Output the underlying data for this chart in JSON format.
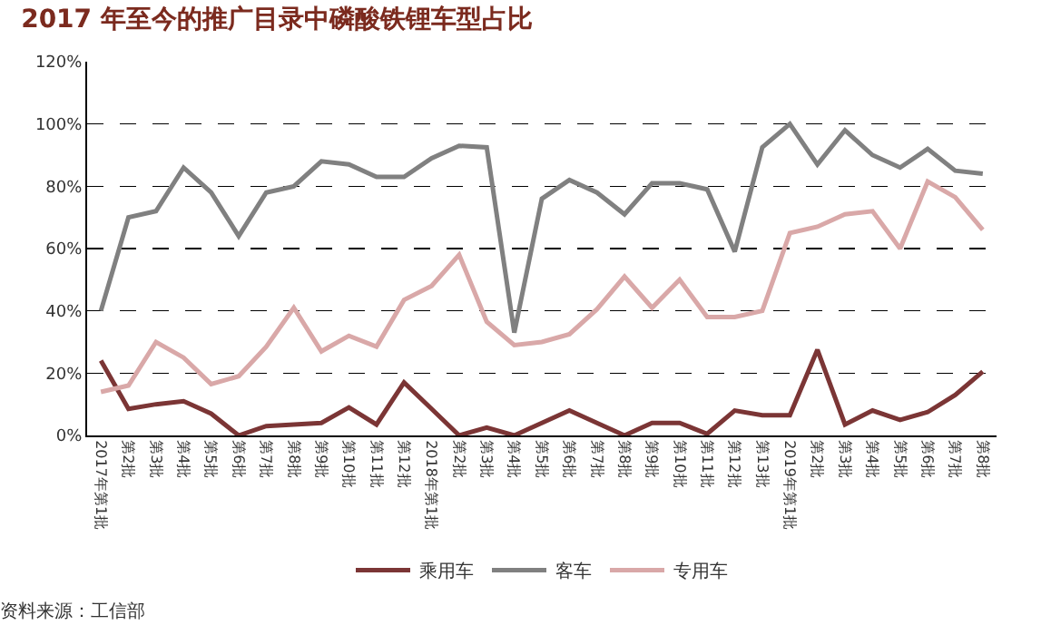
{
  "chart_data": {
    "type": "line",
    "title": "2017 年至今的推广目录中磷酸铁锂车型占比",
    "categories": [
      "2017年第1批",
      "第2批",
      "第3批",
      "第4批",
      "第5批",
      "第6批",
      "第7批",
      "第8批",
      "第9批",
      "第10批",
      "第11批",
      "第12批",
      "2018年第1批",
      "第2批",
      "第3批",
      "第4批",
      "第5批",
      "第6批",
      "第7批",
      "第8批",
      "第9批",
      "第10批",
      "第11批",
      "第12批",
      "第13批",
      "2019年第1批",
      "第2批",
      "第3批",
      "第4批",
      "第5批",
      "第6批",
      "第7批",
      "第8批"
    ],
    "series": [
      {
        "name": "乘用车",
        "color": "#7b3535",
        "values": [
          24,
          8.5,
          10,
          11,
          7,
          0,
          3,
          3.5,
          4,
          9,
          3.5,
          17,
          8.5,
          0,
          2.5,
          0,
          4,
          8,
          4,
          0,
          4,
          4,
          0.5,
          8,
          6.5,
          6.5,
          27.5,
          3.5,
          8,
          5,
          7.5,
          13,
          20.5
        ]
      },
      {
        "name": "客车",
        "color": "#808080",
        "values": [
          40,
          70,
          72,
          86,
          78,
          64,
          78,
          80,
          88,
          87,
          83,
          83,
          89,
          93,
          92.5,
          33,
          76,
          82,
          78,
          71,
          81,
          81,
          79,
          59,
          92.5,
          100,
          87,
          98,
          90,
          86,
          92,
          85,
          84
        ]
      },
      {
        "name": "专用车",
        "color": "#d9a8a8",
        "values": [
          14,
          16,
          30,
          25,
          16.5,
          19,
          28.5,
          41,
          27,
          32,
          28.5,
          43.5,
          48,
          58,
          36.5,
          29,
          30,
          32.5,
          40.5,
          51,
          41,
          50,
          38,
          38,
          40,
          65,
          67,
          71,
          72,
          60,
          81.5,
          76.5,
          66
        ]
      }
    ],
    "ylim": [
      0,
      120
    ],
    "yticks": [
      {
        "value": 0,
        "label": "0%"
      },
      {
        "value": 20,
        "label": "20%"
      },
      {
        "value": 40,
        "label": "40%"
      },
      {
        "value": 60,
        "label": "60%"
      },
      {
        "value": 80,
        "label": "80%"
      },
      {
        "value": 100,
        "label": "100%"
      },
      {
        "value": 120,
        "label": "120%"
      }
    ],
    "grid": "y",
    "legend": "bottom",
    "marker": "none",
    "line_style": "solid",
    "annotations": [
      "资料来源：工信部"
    ]
  }
}
